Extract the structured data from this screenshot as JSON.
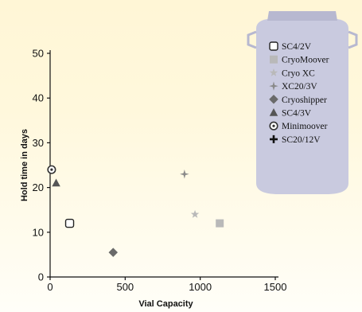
{
  "colors": {
    "axis": "#111111",
    "dewar_fill": "#c9cadf",
    "dewar_edge": "#b7b8d0",
    "dark_marker": "#555555",
    "mid_marker": "#8a8a8a",
    "light_marker": "#b9b9b9"
  },
  "chart_data": {
    "type": "scatter",
    "title": "",
    "xlabel": "Vial Capacity",
    "ylabel": "Hold time in days",
    "xlim": [
      0,
      1500
    ],
    "ylim": [
      0,
      50
    ],
    "xticks": [
      0,
      500,
      1000,
      1500
    ],
    "yticks": [
      0,
      10,
      20,
      30,
      40,
      50
    ],
    "grid": false,
    "legend_position": "top-right",
    "series": [
      {
        "name": "SC4/2V",
        "marker": "rounded-square-outline",
        "color": "#222222",
        "points": [
          {
            "x": 130,
            "y": 12
          }
        ]
      },
      {
        "name": "CryoMoover",
        "marker": "square",
        "color": "#b9b9b9",
        "points": [
          {
            "x": 1130,
            "y": 12
          }
        ]
      },
      {
        "name": "Cryo XC",
        "marker": "star",
        "color": "#b9b9b9",
        "points": [
          {
            "x": 965,
            "y": 14
          }
        ]
      },
      {
        "name": "XC20/3V",
        "marker": "four-point-star",
        "color": "#8a8a8a",
        "points": [
          {
            "x": 895,
            "y": 23
          }
        ]
      },
      {
        "name": "Cryoshipper",
        "marker": "diamond",
        "color": "#6a6a6a",
        "points": [
          {
            "x": 420,
            "y": 5.5
          }
        ]
      },
      {
        "name": "SC4/3V",
        "marker": "triangle",
        "color": "#555555",
        "points": [
          {
            "x": 40,
            "y": 21
          }
        ]
      },
      {
        "name": "Minimoover",
        "marker": "circle-dot",
        "color": "#333333",
        "points": [
          {
            "x": 10,
            "y": 24
          }
        ]
      },
      {
        "name": "SC20/12V",
        "marker": "plus",
        "color": "#111111",
        "points": []
      }
    ]
  }
}
